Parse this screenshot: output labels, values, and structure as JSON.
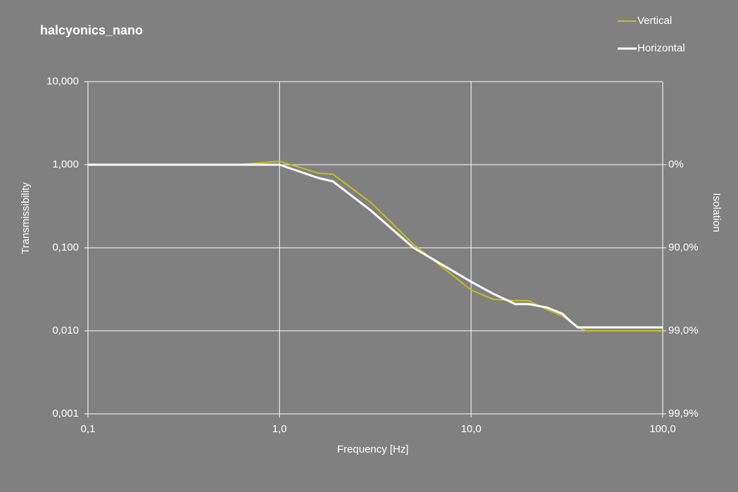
{
  "chart_data": {
    "type": "line",
    "title": "halcyonics_nano",
    "x_label": "Frequency  [Hz]",
    "y_label": "Transmissibility",
    "y2_label": "Isolation",
    "x_scale": "log",
    "y_scale": "log",
    "grid": true,
    "legend": "top-right",
    "x": [
      0.1,
      0.6,
      1.0,
      1.6,
      1.9,
      3,
      5,
      10,
      13,
      17,
      20,
      25,
      30,
      33,
      36,
      40,
      100
    ],
    "series": [
      {
        "name": "Vertical",
        "color": "#c2c21e",
        "values": [
          1,
          1,
          1.1,
          0.79,
          0.77,
          0.35,
          0.11,
          0.031,
          0.024,
          0.023,
          0.023,
          0.018,
          0.015,
          0.013,
          0.011,
          0.01,
          0.01
        ]
      },
      {
        "name": "Horizontal",
        "color": "#ffffff",
        "values": [
          1,
          1,
          1,
          0.69,
          0.63,
          0.28,
          0.1,
          0.039,
          0.028,
          0.021,
          0.021,
          0.019,
          0.016,
          0.013,
          0.011,
          0.011,
          0.011
        ]
      }
    ],
    "xlim": [
      0.1,
      100
    ],
    "xticks": [
      {
        "value": 0.1,
        "label": "0,1"
      },
      {
        "value": 1,
        "label": "1,0"
      },
      {
        "value": 10,
        "label": "10,0"
      },
      {
        "value": 100,
        "label": "100,0"
      }
    ],
    "ylim": [
      0.001,
      10
    ],
    "yticks": [
      {
        "value": 0.001,
        "label": "0,001"
      },
      {
        "value": 0.01,
        "label": "0,010"
      },
      {
        "value": 0.1,
        "label": "0,100"
      },
      {
        "value": 1,
        "label": "1,000"
      },
      {
        "value": 10,
        "label": "10,000"
      }
    ],
    "y2lim": [
      -900,
      99.9
    ],
    "y2ticks": [
      {
        "value": 0,
        "label": "0%"
      },
      {
        "value": 90,
        "label": "90,0%"
      },
      {
        "value": 99,
        "label": "99,0%"
      },
      {
        "value": 99.9,
        "label": "99,9%"
      }
    ]
  }
}
